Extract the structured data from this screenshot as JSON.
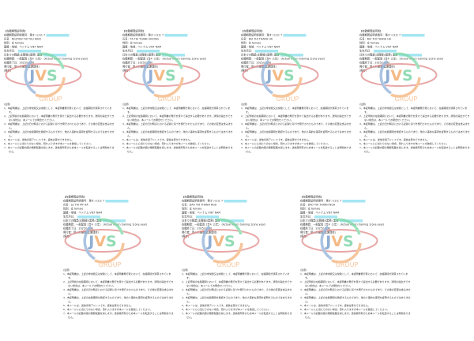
{
  "document": {
    "title": "【在籍期間証明書】",
    "cert_no_label": "在籍期間証明書番号：第オン(2)1 7",
    "gender": "性別：女 female",
    "nationality": "国籍・地域：ベトナム VIET NAM",
    "birth_label": "生年月日：",
    "job_label": "日本での職業(主職種)(業務) 業種",
    "period": "在籍期間：一般配置 1年4（1年） (Actual intern training 1(one year)",
    "end_date": "在籍終了日：2025/11/30",
    "issuer": "発行者：受入れ機関(監理団体)",
    "remarks": "(備考)",
    "notes_title": "(注意)",
    "notes": [
      "1、本証明書は、上記の非常勤又は常勤として、本証明書発行者において、在籍期間が通算されています。",
      "2、上記申請の在籍期間において、本証明書の発行を受けて提出する必要があります。通知の提出ができない場合は、本メールでお問合せください。",
      "3、本証明書は、上記の日付時点における記録に基づき発行されたものであり、その後の変更は含みません。",
      "4、本証明書は、上記の在籍期間を確認するものであり、他の人事的な事項を証明するものではありません。",
      "5、本メールは、送信専用アドレスです。返信は受付できません。",
      "6、本メールに心当たりのない場合、恐れ入りますが本メールを破棄してください。",
      "7、本メールの記載内容の無断転載を禁じます。送信者所有のため本メールを転送することは問題ありません。"
    ]
  },
  "pages": [
    {
      "name": "氏名：NGUYEN THI THU HIEN"
    },
    {
      "name": "氏名：TA THI THANH HUONG"
    },
    {
      "name": "氏名：BUI THI THANH HA"
    },
    {
      "name": "氏名：BUI THI THANH HA"
    },
    {
      "name": "氏名：LE THI MY HA"
    },
    {
      "name": "氏名：DAO THI THANH NGA"
    },
    {
      "name": "氏名：DAO THI THANH NGA"
    }
  ],
  "watermark": {
    "text": "JVS",
    "sub": "GROUP",
    "colors": {
      "j": "#6b93c4",
      "v": "#f0a35e",
      "s": "#6ccf9c",
      "orbit": "#e08a8a",
      "ring": "#f3b27a",
      "arc_green": "#7fd8a8",
      "arc_blue": "#8fb0d8"
    }
  },
  "colors": {
    "highlight": "#a6e6f2"
  }
}
